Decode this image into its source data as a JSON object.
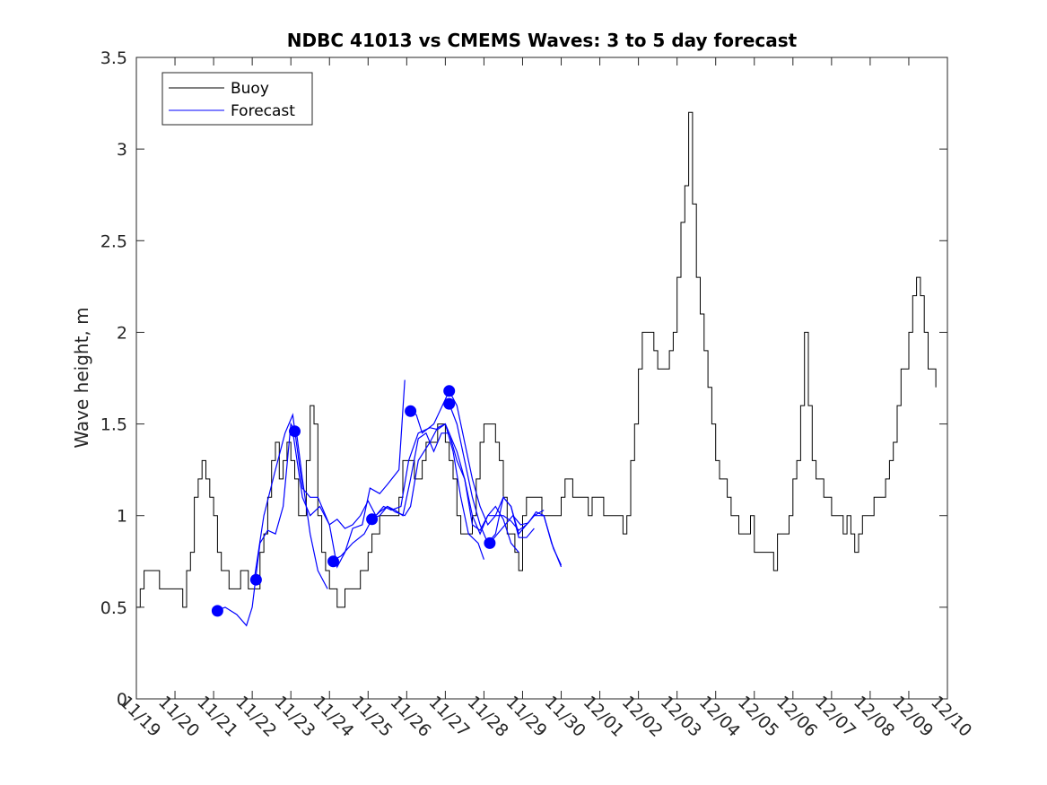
{
  "chart_data": {
    "type": "line",
    "title": "NDBC 41013 vs CMEMS Waves: 3 to 5 day forecast",
    "xlabel": "",
    "ylabel": "Wave height, m",
    "x_unit": "days since 11/19",
    "xlim": [
      0,
      21
    ],
    "ylim": [
      0,
      3.5
    ],
    "x_ticks": [
      {
        "x": 0,
        "label": "11/19"
      },
      {
        "x": 1,
        "label": "11/20"
      },
      {
        "x": 2,
        "label": "11/21"
      },
      {
        "x": 3,
        "label": "11/22"
      },
      {
        "x": 4,
        "label": "11/23"
      },
      {
        "x": 5,
        "label": "11/24"
      },
      {
        "x": 6,
        "label": "11/25"
      },
      {
        "x": 7,
        "label": "11/26"
      },
      {
        "x": 8,
        "label": "11/27"
      },
      {
        "x": 9,
        "label": "11/28"
      },
      {
        "x": 10,
        "label": "11/29"
      },
      {
        "x": 11,
        "label": "11/30"
      },
      {
        "x": 12,
        "label": "12/01"
      },
      {
        "x": 13,
        "label": "12/02"
      },
      {
        "x": 14,
        "label": "12/03"
      },
      {
        "x": 15,
        "label": "12/04"
      },
      {
        "x": 16,
        "label": "12/05"
      },
      {
        "x": 17,
        "label": "12/06"
      },
      {
        "x": 18,
        "label": "12/07"
      },
      {
        "x": 19,
        "label": "12/08"
      },
      {
        "x": 20,
        "label": "12/09"
      },
      {
        "x": 21,
        "label": "12/10"
      }
    ],
    "y_ticks": [
      {
        "y": 0,
        "label": "0"
      },
      {
        "y": 0.5,
        "label": "0.5"
      },
      {
        "y": 1,
        "label": "1"
      },
      {
        "y": 1.5,
        "label": "1.5"
      },
      {
        "y": 2,
        "label": "2"
      },
      {
        "y": 2.5,
        "label": "2.5"
      },
      {
        "y": 3,
        "label": "3"
      },
      {
        "y": 3.5,
        "label": "3.5"
      }
    ],
    "legend": {
      "position": "top-left",
      "entries": [
        {
          "label": "Buoy",
          "color": "#000000"
        },
        {
          "label": "Forecast",
          "color": "#0000ff"
        }
      ]
    },
    "series": [
      {
        "name": "Buoy",
        "color": "#000000",
        "x": [
          0.0,
          0.1,
          0.2,
          0.3,
          0.4,
          0.5,
          0.6,
          0.7,
          0.8,
          0.9,
          1.0,
          1.1,
          1.2,
          1.3,
          1.4,
          1.5,
          1.6,
          1.7,
          1.8,
          1.9,
          2.0,
          2.1,
          2.2,
          2.3,
          2.4,
          2.5,
          2.6,
          2.7,
          2.8,
          2.9,
          3.0,
          3.1,
          3.2,
          3.3,
          3.4,
          3.5,
          3.6,
          3.7,
          3.8,
          3.9,
          4.0,
          4.1,
          4.2,
          4.3,
          4.4,
          4.5,
          4.6,
          4.7,
          4.8,
          4.9,
          5.0,
          5.1,
          5.2,
          5.3,
          5.4,
          5.5,
          5.6,
          5.7,
          5.8,
          5.9,
          6.0,
          6.1,
          6.2,
          6.3,
          6.4,
          6.5,
          6.6,
          6.7,
          6.8,
          6.9,
          7.0,
          7.1,
          7.2,
          7.3,
          7.4,
          7.5,
          7.6,
          7.7,
          7.8,
          7.9,
          8.0,
          8.1,
          8.2,
          8.3,
          8.4,
          8.5,
          8.6,
          8.7,
          8.8,
          8.9,
          9.0,
          9.1,
          9.2,
          9.3,
          9.4,
          9.5,
          9.6,
          9.7,
          9.8,
          9.9,
          10.0,
          10.1,
          10.2,
          10.3,
          10.4,
          10.5,
          10.6,
          10.7,
          10.8,
          10.9,
          11.0,
          11.1,
          11.2,
          11.3,
          11.4,
          11.5,
          11.6,
          11.7,
          11.8,
          11.9,
          12.0,
          12.1,
          12.2,
          12.3,
          12.4,
          12.5,
          12.6,
          12.7,
          12.8,
          12.9,
          13.0,
          13.1,
          13.2,
          13.3,
          13.4,
          13.5,
          13.6,
          13.7,
          13.8,
          13.9,
          14.0,
          14.1,
          14.2,
          14.3,
          14.4,
          14.5,
          14.6,
          14.7,
          14.8,
          14.9,
          15.0,
          15.1,
          15.2,
          15.3,
          15.4,
          15.5,
          15.6,
          15.7,
          15.8,
          15.9,
          16.0,
          16.1,
          16.2,
          16.3,
          16.4,
          16.5,
          16.6,
          16.7,
          16.8,
          16.9,
          17.0,
          17.1,
          17.2,
          17.3,
          17.4,
          17.5,
          17.6,
          17.7,
          17.8,
          17.9,
          18.0,
          18.1,
          18.2,
          18.3,
          18.4,
          18.5,
          18.6,
          18.7,
          18.8,
          18.9,
          19.0,
          19.1,
          19.2,
          19.3,
          19.4,
          19.5,
          19.6,
          19.7,
          19.8,
          19.9,
          20.0,
          20.1,
          20.2,
          20.3,
          20.4,
          20.5,
          20.6,
          20.7
        ],
        "values": [
          0.5,
          0.6,
          0.7,
          0.7,
          0.7,
          0.7,
          0.6,
          0.6,
          0.6,
          0.6,
          0.6,
          0.6,
          0.5,
          0.7,
          0.8,
          1.1,
          1.2,
          1.3,
          1.2,
          1.1,
          1.0,
          0.8,
          0.7,
          0.7,
          0.6,
          0.6,
          0.6,
          0.7,
          0.7,
          0.6,
          0.6,
          0.6,
          0.8,
          0.9,
          1.1,
          1.3,
          1.4,
          1.2,
          1.3,
          1.4,
          1.3,
          1.2,
          1.0,
          1.0,
          1.3,
          1.6,
          1.5,
          1.0,
          0.8,
          0.7,
          0.6,
          0.6,
          0.5,
          0.5,
          0.6,
          0.6,
          0.6,
          0.6,
          0.7,
          0.7,
          0.8,
          0.9,
          0.9,
          1.0,
          1.0,
          1.0,
          1.0,
          1.0,
          1.1,
          1.3,
          1.3,
          1.3,
          1.2,
          1.2,
          1.3,
          1.4,
          1.4,
          1.4,
          1.5,
          1.5,
          1.4,
          1.3,
          1.2,
          1.0,
          0.9,
          0.9,
          0.9,
          1.0,
          1.2,
          1.4,
          1.5,
          1.5,
          1.5,
          1.4,
          1.3,
          1.1,
          0.9,
          0.9,
          0.8,
          0.7,
          1.0,
          1.1,
          1.1,
          1.1,
          1.1,
          1.0,
          1.0,
          1.0,
          1.0,
          1.0,
          1.1,
          1.2,
          1.2,
          1.1,
          1.1,
          1.1,
          1.1,
          1.0,
          1.1,
          1.1,
          1.1,
          1.0,
          1.0,
          1.0,
          1.0,
          1.0,
          0.9,
          1.0,
          1.3,
          1.5,
          1.8,
          2.0,
          2.0,
          2.0,
          1.9,
          1.8,
          1.8,
          1.8,
          1.9,
          2.0,
          2.3,
          2.6,
          2.8,
          3.2,
          2.7,
          2.3,
          2.1,
          1.9,
          1.7,
          1.5,
          1.3,
          1.2,
          1.2,
          1.1,
          1.0,
          1.0,
          0.9,
          0.9,
          0.9,
          1.0,
          0.8,
          0.8,
          0.8,
          0.8,
          0.8,
          0.7,
          0.9,
          0.9,
          0.9,
          1.0,
          1.2,
          1.3,
          1.6,
          2.0,
          1.6,
          1.3,
          1.2,
          1.2,
          1.1,
          1.1,
          1.0,
          1.0,
          1.0,
          0.9,
          1.0,
          0.9,
          0.8,
          0.9,
          1.0,
          1.0,
          1.0,
          1.1,
          1.1,
          1.1,
          1.2,
          1.3,
          1.4,
          1.6,
          1.8,
          1.8,
          2.0,
          2.2,
          2.3,
          2.2,
          2.0,
          1.8,
          1.8,
          1.7
        ]
      },
      {
        "name": "Forecast",
        "color": "#0000ff",
        "segments": [
          {
            "x": [
              2.05,
              2.3,
              2.6,
              2.85,
              3.0,
              3.2,
              3.4,
              3.6,
              3.8,
              4.0,
              4.15,
              4.3,
              4.5,
              4.7,
              4.95
            ],
            "values": [
              0.48,
              0.5,
              0.46,
              0.4,
              0.5,
              0.85,
              0.92,
              0.9,
              1.05,
              1.5,
              1.45,
              1.2,
              0.9,
              0.7,
              0.6
            ]
          },
          {
            "x": [
              3.05,
              3.3,
              3.6,
              3.85,
              4.05,
              4.3,
              4.5,
              4.7,
              5.0,
              5.2,
              5.4,
              5.6,
              5.85,
              6.05,
              6.3,
              6.5,
              6.8,
              6.95
            ],
            "values": [
              0.65,
              1.0,
              1.25,
              1.45,
              1.55,
              1.15,
              1.1,
              1.1,
              0.95,
              0.72,
              0.8,
              0.93,
              0.95,
              1.15,
              1.12,
              1.17,
              1.25,
              1.74
            ]
          },
          {
            "x": [
              4.05,
              4.3,
              4.5,
              4.75,
              5.0,
              5.2,
              5.4,
              5.6,
              5.8,
              6.0,
              6.2,
              6.4,
              6.6,
              6.85,
              7.05,
              7.3,
              7.6,
              7.8,
              8.0,
              8.2,
              8.4,
              8.6,
              8.85,
              9.0
            ],
            "values": [
              1.46,
              1.1,
              1.0,
              1.05,
              0.95,
              0.98,
              0.93,
              0.95,
              1.0,
              1.08,
              1.0,
              1.05,
              1.03,
              1.05,
              1.3,
              1.45,
              1.48,
              1.47,
              1.5,
              1.35,
              1.1,
              0.9,
              0.85,
              0.76
            ]
          },
          {
            "x": [
              5.05,
              5.3,
              5.6,
              5.9,
              6.1,
              6.3,
              6.5,
              6.7,
              6.9,
              7.1,
              7.3,
              7.5,
              7.7,
              7.9,
              8.1,
              8.3,
              8.5,
              8.7,
              8.9,
              9.1,
              9.3,
              9.5,
              9.7,
              9.9
            ],
            "values": [
              0.75,
              0.78,
              0.85,
              0.9,
              0.98,
              1.02,
              1.05,
              1.03,
              1.0,
              1.2,
              1.42,
              1.45,
              1.35,
              1.45,
              1.45,
              1.3,
              1.2,
              0.95,
              0.92,
              1.0,
              1.05,
              0.98,
              0.85,
              0.8
            ]
          },
          {
            "x": [
              6.05,
              6.3,
              6.5,
              6.7,
              6.95,
              7.1,
              7.3,
              7.6,
              7.8,
              8.0,
              8.1,
              8.3,
              8.5,
              8.7,
              8.9,
              9.1,
              9.3,
              9.5,
              9.7,
              9.9,
              10.1,
              10.3,
              10.55
            ],
            "values": [
              0.98,
              1.0,
              1.05,
              1.02,
              1.0,
              1.05,
              1.3,
              1.4,
              1.48,
              1.5,
              1.45,
              1.35,
              1.2,
              1.0,
              0.9,
              1.0,
              1.0,
              1.1,
              1.05,
              0.9,
              0.95,
              1.0,
              1.03
            ]
          },
          {
            "x": [
              7.1,
              7.25,
              7.4,
              7.7,
              8.1,
              8.3,
              8.5,
              8.7,
              8.9,
              9.1,
              9.3,
              9.5,
              9.7,
              9.9,
              10.1,
              10.3,
              10.55,
              10.8,
              11.0
            ],
            "values": [
              1.57,
              1.55,
              1.45,
              1.5,
              1.68,
              1.6,
              1.4,
              1.2,
              1.05,
              0.95,
              1.0,
              1.0,
              0.97,
              0.92,
              0.95,
              1.0,
              1.0,
              0.82,
              0.73
            ]
          },
          {
            "x": [
              8.1,
              8.3,
              8.5,
              8.7,
              8.9,
              9.1,
              9.3,
              9.5,
              9.7,
              9.9,
              10.1,
              10.3
            ],
            "values": [
              1.61,
              1.5,
              1.3,
              1.1,
              0.95,
              0.85,
              0.9,
              1.1,
              1.05,
              0.88,
              0.88,
              0.93
            ]
          },
          {
            "x": [
              9.15,
              9.35,
              9.55,
              9.75,
              9.95,
              10.15,
              10.35,
              10.55,
              10.75,
              11.0
            ],
            "values": [
              0.85,
              0.9,
              0.95,
              1.0,
              0.95,
              0.96,
              1.02,
              1.0,
              0.85,
              0.72
            ]
          }
        ],
        "markers": {
          "x": [
            2.1,
            3.1,
            4.1,
            5.1,
            6.1,
            7.1,
            8.1,
            8.1,
            9.15
          ],
          "values": [
            0.48,
            0.65,
            1.46,
            0.75,
            0.98,
            1.57,
            1.68,
            1.61,
            0.85
          ]
        }
      }
    ]
  }
}
